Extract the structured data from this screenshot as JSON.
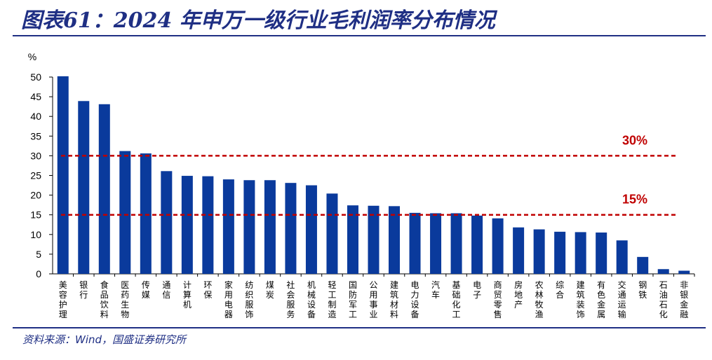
{
  "header": {
    "title": "图表61：2024 年申万一级行业毛利润率分布情况"
  },
  "footer": {
    "source": "资料来源：Wind，国盛证券研究所"
  },
  "colors": {
    "bar": "#0a3a9c",
    "reference": "#c00000",
    "title": "#1f2f84"
  },
  "chart_data": {
    "type": "bar",
    "ylabel": "%",
    "ylim": [
      0,
      50
    ],
    "yticks": [
      0,
      5,
      10,
      15,
      20,
      25,
      30,
      35,
      40,
      45,
      50
    ],
    "grid": false,
    "categories": [
      "美容护理",
      "银行",
      "食品饮料",
      "医药生物",
      "传媒",
      "通信",
      "计算机",
      "环保",
      "家用电器",
      "纺织服饰",
      "煤炭",
      "社会服务",
      "机械设备",
      "轻工制造",
      "国防军工",
      "公用事业",
      "建筑材料",
      "电力设备",
      "汽车",
      "基础化工",
      "电子",
      "商贸零售",
      "房地产",
      "农林牧渔",
      "综合",
      "建筑装饰",
      "有色金属",
      "交通运输",
      "钢铁",
      "石油石化",
      "非银金融"
    ],
    "values": [
      50.2,
      43.9,
      43.1,
      31.2,
      30.6,
      26.1,
      24.9,
      24.8,
      24.0,
      23.8,
      23.8,
      23.1,
      22.5,
      20.4,
      17.4,
      17.3,
      17.2,
      15.5,
      15.4,
      15.4,
      14.8,
      14.1,
      11.8,
      11.3,
      10.7,
      10.6,
      10.5,
      8.5,
      4.3,
      1.2,
      0.8
    ],
    "reference_lines": [
      {
        "value": 30,
        "label": "30%"
      },
      {
        "value": 15,
        "label": "15%"
      }
    ]
  }
}
